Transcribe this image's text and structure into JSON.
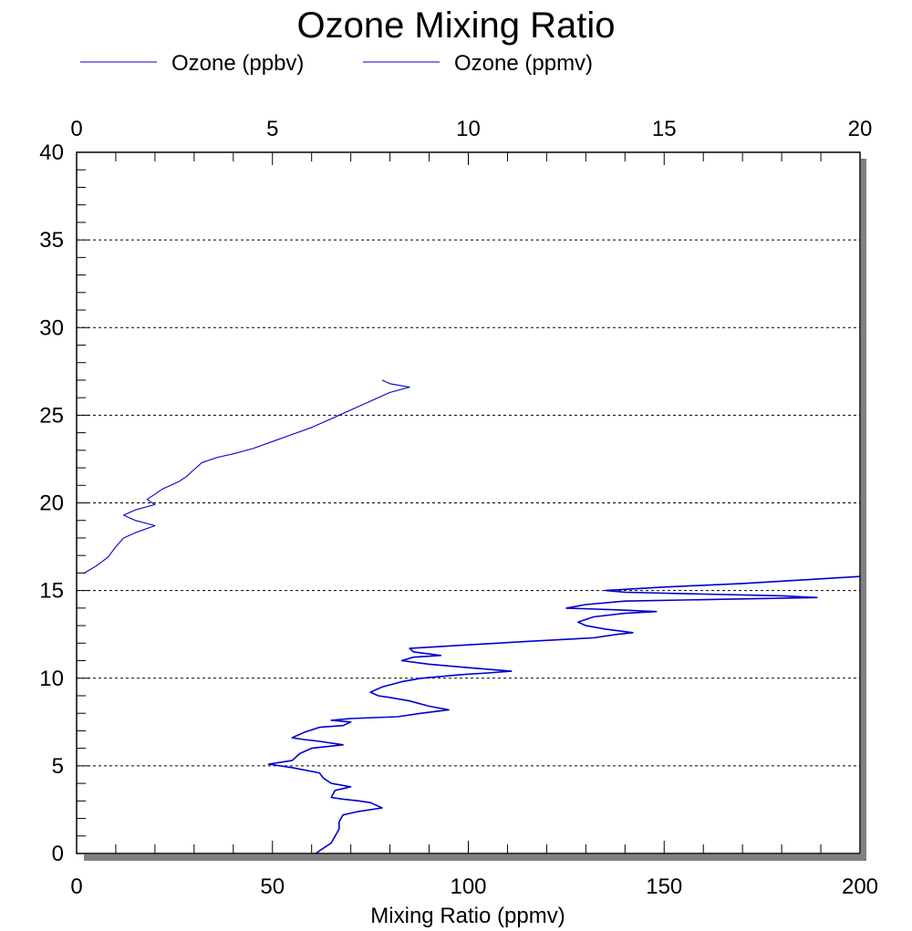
{
  "chart_data": {
    "type": "line",
    "title": "Ozone Mixing Ratio",
    "xlabel": "Mixing Ratio (ppmv)",
    "ylabel": "",
    "xlim": [
      0,
      200
    ],
    "x2lim": [
      0,
      20
    ],
    "ylim": [
      0,
      40
    ],
    "x_ticks": [
      "0",
      "50",
      "100",
      "150",
      "200"
    ],
    "x2_ticks": [
      "0",
      "5",
      "10",
      "15",
      "20"
    ],
    "y_ticks": [
      "0",
      "5",
      "10",
      "15",
      "20",
      "25",
      "30",
      "35",
      "40"
    ],
    "grid": "horizontal dotted",
    "legend_position": "top",
    "series": [
      {
        "name": "Ozone (ppbv)",
        "axis": "bottom",
        "color": "#0000cc",
        "points": [
          [
            61,
            0.0
          ],
          [
            63,
            0.3
          ],
          [
            65,
            0.6
          ],
          [
            66,
            1.0
          ],
          [
            67,
            1.4
          ],
          [
            67,
            1.8
          ],
          [
            68,
            2.2
          ],
          [
            72,
            2.4
          ],
          [
            78,
            2.6
          ],
          [
            75,
            2.9
          ],
          [
            72,
            3.0
          ],
          [
            68,
            3.1
          ],
          [
            65,
            3.2
          ],
          [
            66,
            3.6
          ],
          [
            70,
            3.8
          ],
          [
            65,
            4.0
          ],
          [
            63,
            4.3
          ],
          [
            62,
            4.6
          ],
          [
            55,
            4.9
          ],
          [
            49,
            5.1
          ],
          [
            55,
            5.3
          ],
          [
            57,
            5.7
          ],
          [
            60,
            6.0
          ],
          [
            68,
            6.2
          ],
          [
            62,
            6.4
          ],
          [
            58,
            6.5
          ],
          [
            55,
            6.6
          ],
          [
            58,
            6.9
          ],
          [
            62,
            7.2
          ],
          [
            68,
            7.3
          ],
          [
            70,
            7.5
          ],
          [
            65,
            7.6
          ],
          [
            70,
            7.7
          ],
          [
            82,
            7.8
          ],
          [
            88,
            8.0
          ],
          [
            95,
            8.2
          ],
          [
            90,
            8.4
          ],
          [
            85,
            8.7
          ],
          [
            80,
            8.9
          ],
          [
            77,
            9.0
          ],
          [
            75,
            9.2
          ],
          [
            78,
            9.5
          ],
          [
            83,
            9.8
          ],
          [
            88,
            10.0
          ],
          [
            98,
            10.2
          ],
          [
            105,
            10.3
          ],
          [
            111,
            10.4
          ],
          [
            100,
            10.6
          ],
          [
            90,
            10.8
          ],
          [
            83,
            11.0
          ],
          [
            86,
            11.2
          ],
          [
            93,
            11.3
          ],
          [
            86,
            11.5
          ],
          [
            85,
            11.7
          ],
          [
            100,
            11.9
          ],
          [
            115,
            12.1
          ],
          [
            132,
            12.3
          ],
          [
            138,
            12.5
          ],
          [
            142,
            12.6
          ],
          [
            135,
            12.8
          ],
          [
            130,
            13.0
          ],
          [
            128,
            13.2
          ],
          [
            132,
            13.5
          ],
          [
            140,
            13.7
          ],
          [
            148,
            13.8
          ],
          [
            138,
            13.9
          ],
          [
            125,
            14.0
          ],
          [
            130,
            14.2
          ],
          [
            140,
            14.4
          ],
          [
            165,
            14.5
          ],
          [
            189,
            14.6
          ],
          [
            180,
            14.7
          ],
          [
            160,
            14.8
          ],
          [
            140,
            14.9
          ],
          [
            135,
            15.0
          ],
          [
            150,
            15.2
          ],
          [
            170,
            15.4
          ],
          [
            185,
            15.6
          ],
          [
            200,
            15.8
          ]
        ]
      },
      {
        "name": "Ozone (ppmv)",
        "axis": "top",
        "color": "#0000cc",
        "points": [
          [
            0.2,
            16.0
          ],
          [
            0.5,
            16.4
          ],
          [
            0.8,
            16.9
          ],
          [
            1.0,
            17.5
          ],
          [
            1.2,
            18.0
          ],
          [
            1.5,
            18.3
          ],
          [
            2.0,
            18.7
          ],
          [
            1.5,
            19.0
          ],
          [
            1.2,
            19.3
          ],
          [
            1.5,
            19.6
          ],
          [
            2.0,
            19.9
          ],
          [
            1.8,
            20.2
          ],
          [
            2.0,
            20.5
          ],
          [
            2.2,
            20.8
          ],
          [
            2.6,
            21.2
          ],
          [
            2.8,
            21.5
          ],
          [
            3.0,
            21.9
          ],
          [
            3.2,
            22.3
          ],
          [
            3.6,
            22.6
          ],
          [
            4.0,
            22.8
          ],
          [
            4.5,
            23.1
          ],
          [
            5.0,
            23.5
          ],
          [
            5.5,
            23.9
          ],
          [
            6.0,
            24.3
          ],
          [
            6.5,
            24.8
          ],
          [
            7.0,
            25.3
          ],
          [
            7.5,
            25.8
          ],
          [
            8.0,
            26.3
          ],
          [
            8.5,
            26.6
          ],
          [
            8.0,
            26.8
          ],
          [
            7.8,
            27.0
          ]
        ]
      }
    ]
  }
}
